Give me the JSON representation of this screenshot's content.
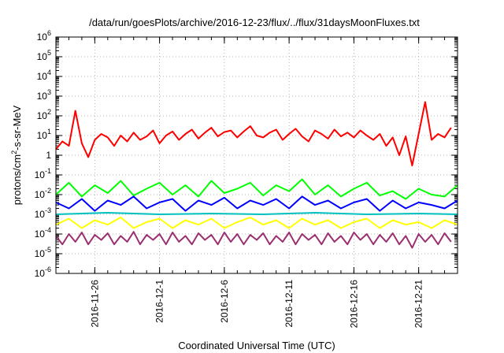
{
  "chart_data": {
    "type": "line",
    "title": "/data/run/goesPlots/archive/2016-12-23/flux/../flux/31daysMoonFluxes.txt",
    "xlabel": "Coordinated Universal Time (UTC)",
    "ylabel": {
      "base": "protons/cm",
      "sup": "2",
      "rest": "-s-sr-MeV"
    },
    "x_range": [
      "2016-11-23",
      "2016-12-24"
    ],
    "y_scale": "log",
    "ylim": [
      1e-06,
      1000000.0
    ],
    "grid": true,
    "legend": "none",
    "x_ticks": [
      {
        "date": "2016-11-26",
        "label": "2016-11-26"
      },
      {
        "date": "2016-12-01",
        "label": "2016-12-1"
      },
      {
        "date": "2016-12-06",
        "label": "2016-12-6"
      },
      {
        "date": "2016-12-11",
        "label": "2016-12-11"
      },
      {
        "date": "2016-12-16",
        "label": "2016-12-16"
      },
      {
        "date": "2016-12-21",
        "label": "2016-12-21"
      }
    ],
    "y_ticks": [
      {
        "value": 1e-06,
        "mantissa": "10",
        "exp": "-6"
      },
      {
        "value": 1e-05,
        "mantissa": "10",
        "exp": "-5"
      },
      {
        "value": 0.0001,
        "mantissa": "10",
        "exp": "-4"
      },
      {
        "value": 0.001,
        "mantissa": "10",
        "exp": "-3"
      },
      {
        "value": 0.01,
        "mantissa": "10",
        "exp": "-2"
      },
      {
        "value": 0.1,
        "mantissa": "10",
        "exp": "-1"
      },
      {
        "value": 1,
        "mantissa": "1",
        "exp": ""
      },
      {
        "value": 10,
        "mantissa": "10",
        "exp": "1"
      },
      {
        "value": 100,
        "mantissa": "10",
        "exp": "2"
      },
      {
        "value": 1000,
        "mantissa": "10",
        "exp": "3"
      },
      {
        "value": 10000,
        "mantissa": "10",
        "exp": "4"
      },
      {
        "value": 100000,
        "mantissa": "10",
        "exp": "5"
      },
      {
        "value": 1000000,
        "mantissa": "10",
        "exp": "6"
      }
    ],
    "series": [
      {
        "color": "#ff0000",
        "x": [
          "2016-11-23T00",
          "2016-11-23T12",
          "2016-11-24T00",
          "2016-11-24T12",
          "2016-11-25T00",
          "2016-11-25T12",
          "2016-11-26T00",
          "2016-11-26T12",
          "2016-11-27T00",
          "2016-11-27T12",
          "2016-11-28T00",
          "2016-11-28T12",
          "2016-11-29T00",
          "2016-11-29T12",
          "2016-11-30T00",
          "2016-11-30T12",
          "2016-12-01T00",
          "2016-12-01T12",
          "2016-12-02T00",
          "2016-12-02T12",
          "2016-12-03T00",
          "2016-12-03T12",
          "2016-12-04T00",
          "2016-12-04T12",
          "2016-12-05T00",
          "2016-12-05T12",
          "2016-12-06T00",
          "2016-12-06T12",
          "2016-12-07T00",
          "2016-12-07T12",
          "2016-12-08T00",
          "2016-12-08T12",
          "2016-12-09T00",
          "2016-12-09T12",
          "2016-12-10T00",
          "2016-12-10T12",
          "2016-12-11T00",
          "2016-12-11T12",
          "2016-12-12T00",
          "2016-12-12T12",
          "2016-12-13T00",
          "2016-12-13T12",
          "2016-12-14T00",
          "2016-12-14T12",
          "2016-12-15T00",
          "2016-12-15T12",
          "2016-12-16T00",
          "2016-12-16T12",
          "2016-12-17T00",
          "2016-12-17T12",
          "2016-12-18T00",
          "2016-12-18T12",
          "2016-12-19T00",
          "2016-12-19T12",
          "2016-12-20T00",
          "2016-12-20T12",
          "2016-12-21T00",
          "2016-12-21T12",
          "2016-12-22T00",
          "2016-12-22T12",
          "2016-12-23T00",
          "2016-12-23T12"
        ],
        "y": [
          2,
          5,
          3,
          180,
          4,
          0.8,
          6,
          12,
          8,
          3,
          10,
          5,
          14,
          6,
          9,
          18,
          4,
          10,
          16,
          6,
          12,
          20,
          7,
          14,
          25,
          9,
          15,
          18,
          8,
          16,
          30,
          10,
          8,
          14,
          20,
          6,
          12,
          22,
          9,
          5,
          18,
          12,
          7,
          20,
          9,
          14,
          8,
          18,
          10,
          6,
          12,
          3,
          8,
          1,
          9,
          0.3,
          12,
          500,
          6,
          12,
          8,
          25
        ]
      },
      {
        "color": "#00ff00",
        "x": [
          "2016-11-23T00",
          "2016-11-24T00",
          "2016-11-25T00",
          "2016-11-26T00",
          "2016-11-27T00",
          "2016-11-28T00",
          "2016-11-29T00",
          "2016-11-30T00",
          "2016-12-01T00",
          "2016-12-02T00",
          "2016-12-03T00",
          "2016-12-04T00",
          "2016-12-05T00",
          "2016-12-06T00",
          "2016-12-07T00",
          "2016-12-08T00",
          "2016-12-09T00",
          "2016-12-10T00",
          "2016-12-11T00",
          "2016-12-12T00",
          "2016-12-13T00",
          "2016-12-14T00",
          "2016-12-15T00",
          "2016-12-16T00",
          "2016-12-17T00",
          "2016-12-18T00",
          "2016-12-19T00",
          "2016-12-20T00",
          "2016-12-21T00",
          "2016-12-22T00",
          "2016-12-23T00",
          "2016-12-24T00"
        ],
        "y": [
          0.01,
          0.04,
          0.008,
          0.03,
          0.012,
          0.05,
          0.009,
          0.02,
          0.04,
          0.01,
          0.03,
          0.008,
          0.05,
          0.012,
          0.02,
          0.04,
          0.009,
          0.03,
          0.015,
          0.06,
          0.01,
          0.03,
          0.008,
          0.02,
          0.04,
          0.009,
          0.015,
          0.006,
          0.02,
          0.01,
          0.008,
          0.03
        ]
      },
      {
        "color": "#0000ff",
        "x": [
          "2016-11-23T00",
          "2016-11-24T00",
          "2016-11-25T00",
          "2016-11-26T00",
          "2016-11-27T00",
          "2016-11-28T00",
          "2016-11-29T00",
          "2016-11-30T00",
          "2016-12-01T00",
          "2016-12-02T00",
          "2016-12-03T00",
          "2016-12-04T00",
          "2016-12-05T00",
          "2016-12-06T00",
          "2016-12-07T00",
          "2016-12-08T00",
          "2016-12-09T00",
          "2016-12-10T00",
          "2016-12-11T00",
          "2016-12-12T00",
          "2016-12-13T00",
          "2016-12-14T00",
          "2016-12-15T00",
          "2016-12-16T00",
          "2016-12-17T00",
          "2016-12-18T00",
          "2016-12-19T00",
          "2016-12-20T00",
          "2016-12-21T00",
          "2016-12-22T00",
          "2016-12-23T00",
          "2016-12-24T00"
        ],
        "y": [
          0.004,
          0.002,
          0.006,
          0.0015,
          0.005,
          0.003,
          0.008,
          0.002,
          0.004,
          0.006,
          0.0015,
          0.005,
          0.003,
          0.007,
          0.002,
          0.005,
          0.003,
          0.006,
          0.002,
          0.008,
          0.003,
          0.005,
          0.002,
          0.004,
          0.006,
          0.0015,
          0.005,
          0.002,
          0.004,
          0.003,
          0.002,
          0.005
        ]
      },
      {
        "color": "#00c0c0",
        "x": [
          "2016-11-23T00",
          "2016-11-27T00",
          "2016-12-01T00",
          "2016-12-05T00",
          "2016-12-09T00",
          "2016-12-13T00",
          "2016-12-17T00",
          "2016-12-21T00",
          "2016-12-24T00"
        ],
        "y": [
          0.001,
          0.0012,
          0.001,
          0.0011,
          0.001,
          0.0012,
          0.001,
          0.0011,
          0.001
        ]
      },
      {
        "color": "#ffff00",
        "x": [
          "2016-11-23T00",
          "2016-11-24T00",
          "2016-11-25T00",
          "2016-11-26T00",
          "2016-11-27T00",
          "2016-11-28T00",
          "2016-11-29T00",
          "2016-11-30T00",
          "2016-12-01T00",
          "2016-12-02T00",
          "2016-12-03T00",
          "2016-12-04T00",
          "2016-12-05T00",
          "2016-12-06T00",
          "2016-12-07T00",
          "2016-12-08T00",
          "2016-12-09T00",
          "2016-12-10T00",
          "2016-12-11T00",
          "2016-12-12T00",
          "2016-12-13T00",
          "2016-12-14T00",
          "2016-12-15T00",
          "2016-12-16T00",
          "2016-12-17T00",
          "2016-12-18T00",
          "2016-12-19T00",
          "2016-12-20T00",
          "2016-12-21T00",
          "2016-12-22T00",
          "2016-12-23T00",
          "2016-12-24T00"
        ],
        "y": [
          0.0003,
          0.0006,
          0.0002,
          0.0005,
          0.0003,
          0.0007,
          0.0002,
          0.0004,
          0.0006,
          0.0002,
          0.0005,
          0.0003,
          0.0006,
          0.0002,
          0.0004,
          0.0007,
          0.0003,
          0.0005,
          0.0002,
          0.0006,
          0.0003,
          0.0005,
          0.0002,
          0.0004,
          0.0006,
          0.0002,
          0.0005,
          0.0003,
          0.0004,
          0.0002,
          0.0005,
          0.0003
        ]
      },
      {
        "color": "#9b3070",
        "x": [
          "2016-11-23T00",
          "2016-11-23T12",
          "2016-11-24T00",
          "2016-11-24T12",
          "2016-11-25T00",
          "2016-11-25T12",
          "2016-11-26T00",
          "2016-11-26T12",
          "2016-11-27T00",
          "2016-11-27T12",
          "2016-11-28T00",
          "2016-11-28T12",
          "2016-11-29T00",
          "2016-11-29T12",
          "2016-11-30T00",
          "2016-11-30T12",
          "2016-12-01T00",
          "2016-12-01T12",
          "2016-12-02T00",
          "2016-12-02T12",
          "2016-12-03T00",
          "2016-12-03T12",
          "2016-12-04T00",
          "2016-12-04T12",
          "2016-12-05T00",
          "2016-12-05T12",
          "2016-12-06T00",
          "2016-12-06T12",
          "2016-12-07T00",
          "2016-12-07T12",
          "2016-12-08T00",
          "2016-12-08T12",
          "2016-12-09T00",
          "2016-12-09T12",
          "2016-12-10T00",
          "2016-12-10T12",
          "2016-12-11T00",
          "2016-12-11T12",
          "2016-12-12T00",
          "2016-12-12T12",
          "2016-12-13T00",
          "2016-12-13T12",
          "2016-12-14T00",
          "2016-12-14T12",
          "2016-12-15T00",
          "2016-12-15T12",
          "2016-12-16T00",
          "2016-12-16T12",
          "2016-12-17T00",
          "2016-12-17T12",
          "2016-12-18T00",
          "2016-12-18T12",
          "2016-12-19T00",
          "2016-12-19T12",
          "2016-12-20T00",
          "2016-12-20T12",
          "2016-12-21T00",
          "2016-12-21T12",
          "2016-12-22T00",
          "2016-12-22T12",
          "2016-12-23T00",
          "2016-12-23T12"
        ],
        "y": [
          8e-05,
          3e-05,
          0.0001,
          4e-05,
          0.00012,
          3e-05,
          9e-05,
          5e-05,
          0.00011,
          3e-05,
          8e-05,
          4e-05,
          0.00013,
          3e-05,
          9e-05,
          5e-05,
          0.0001,
          3e-05,
          0.00012,
          4e-05,
          8e-05,
          3e-05,
          0.00011,
          5e-05,
          9e-05,
          3e-05,
          0.00012,
          4e-05,
          0.0001,
          3e-05,
          9e-05,
          5e-05,
          0.00011,
          3e-05,
          8e-05,
          4e-05,
          0.00012,
          3e-05,
          0.0001,
          5e-05,
          9e-05,
          3e-05,
          0.00011,
          4e-05,
          8e-05,
          3e-05,
          0.00012,
          5e-05,
          0.0001,
          3e-05,
          9e-05,
          4e-05,
          0.00011,
          3e-05,
          8e-05,
          2e-05,
          0.0001,
          4e-05,
          9e-05,
          3e-05,
          0.00011,
          4e-05
        ]
      }
    ]
  }
}
